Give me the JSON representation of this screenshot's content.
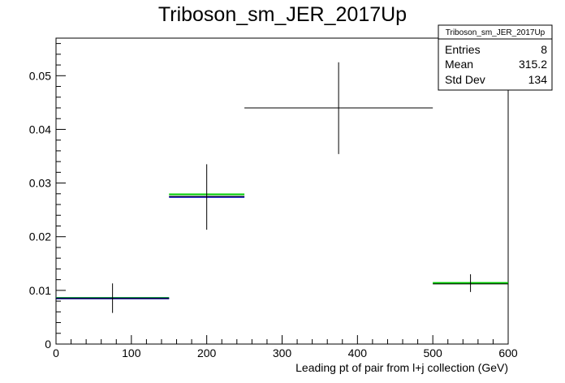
{
  "chart_data": {
    "type": "histogram",
    "title": "Triboson_sm_JER_2017Up",
    "xlabel": "Leading pt of pair from l+j collection (GeV)",
    "ylabel": "",
    "xlim": [
      0,
      600
    ],
    "ylim": [
      0,
      0.057
    ],
    "x_ticks": [
      0,
      100,
      200,
      300,
      400,
      500,
      600
    ],
    "y_ticks": [
      0,
      0.01,
      0.02,
      0.03,
      0.04,
      0.05
    ],
    "x_tick_labels": [
      "0",
      "100",
      "200",
      "300",
      "400",
      "500",
      "600"
    ],
    "y_tick_labels": [
      "0",
      "0.01",
      "0.02",
      "0.03",
      "0.04",
      "0.05"
    ],
    "grid": false,
    "series": [
      {
        "color": "#000000",
        "style": "error-crosses",
        "points": [
          {
            "x": 75,
            "xlow": 0,
            "xhigh": 150,
            "y": 0.0085,
            "ylow": 0.0058,
            "yhigh": 0.0113
          },
          {
            "x": 200,
            "xlow": 150,
            "xhigh": 250,
            "y": 0.0275,
            "ylow": 0.0213,
            "yhigh": 0.0335
          },
          {
            "x": 375,
            "xlow": 250,
            "xhigh": 500,
            "y": 0.044,
            "ylow": 0.0354,
            "yhigh": 0.0525
          },
          {
            "x": 550,
            "xlow": 500,
            "xhigh": 600,
            "y": 0.0112,
            "ylow": 0.0097,
            "yhigh": 0.013
          }
        ]
      },
      {
        "color": "#00cc00",
        "style": "bin-lines",
        "bins": [
          {
            "xlow": 0,
            "xhigh": 150,
            "y": 0.0086
          },
          {
            "xlow": 150,
            "xhigh": 250,
            "y": 0.0279
          },
          {
            "xlow": 500,
            "xhigh": 600,
            "y": 0.0114
          }
        ]
      },
      {
        "color": "#0000cc",
        "style": "bin-lines",
        "bins": [
          {
            "xlow": 0,
            "xhigh": 150,
            "y": 0.0085
          },
          {
            "xlow": 150,
            "xhigh": 250,
            "y": 0.0274
          }
        ]
      }
    ],
    "stats_box": {
      "title": "Triboson_sm_JER_2017Up",
      "rows": [
        {
          "label": "Entries",
          "value": "8"
        },
        {
          "label": "Mean",
          "value": "315.2"
        },
        {
          "label": "Std Dev",
          "value": "134"
        }
      ]
    }
  }
}
